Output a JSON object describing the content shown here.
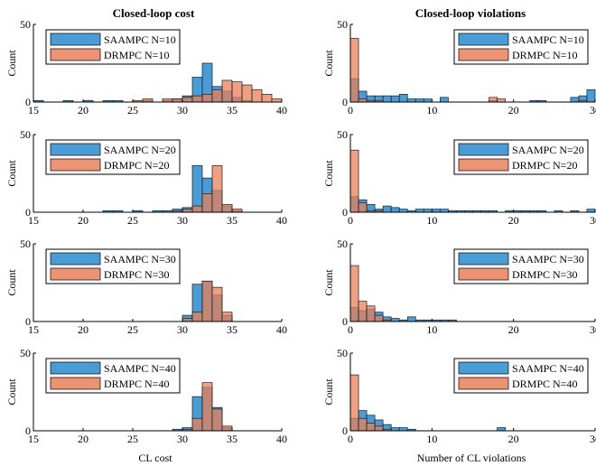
{
  "colors": {
    "saampc": "#4a9cd6",
    "drmpc": "#e8805a",
    "overlap": "#9a6a5a",
    "edge": "#1a1a1a"
  },
  "chart_data": {
    "type": "histogram-grid",
    "column_titles": [
      "Closed-loop cost",
      "Closed-loop violations"
    ],
    "column_xlabels": [
      "",
      ""
    ],
    "bottom_xlabels": [
      "CL cost",
      "Number of CL violations"
    ],
    "ylabel": "Count",
    "ylim": [
      0,
      50
    ],
    "yticks": [
      0,
      50
    ],
    "columns": [
      {
        "xlim": [
          15,
          40
        ],
        "xticks": [
          15,
          20,
          25,
          30,
          35,
          40
        ],
        "binwidth": 1
      },
      {
        "xlim": [
          0,
          30
        ],
        "xticks": [
          0,
          10,
          20,
          30
        ],
        "binwidth": 1
      }
    ],
    "rows": [
      {
        "N": 10,
        "cost": {
          "legend": [
            "SAAMPC N=10",
            "DRMPC N=10"
          ],
          "saampc": [
            [
              15,
              1
            ],
            [
              18,
              1
            ],
            [
              20,
              1
            ],
            [
              22,
              1
            ],
            [
              23,
              1
            ],
            [
              26,
              1
            ],
            [
              28,
              1
            ],
            [
              29,
              2
            ],
            [
              30,
              4
            ],
            [
              31,
              16
            ],
            [
              32,
              25
            ],
            [
              33,
              10
            ],
            [
              34,
              7
            ],
            [
              35,
              3
            ],
            [
              36,
              1
            ]
          ],
          "drmpc": [
            [
              25,
              1
            ],
            [
              26,
              2
            ],
            [
              28,
              2
            ],
            [
              29,
              2
            ],
            [
              30,
              3
            ],
            [
              31,
              4
            ],
            [
              32,
              5
            ],
            [
              33,
              8
            ],
            [
              34,
              14
            ],
            [
              35,
              13
            ],
            [
              36,
              11
            ],
            [
              37,
              8
            ],
            [
              38,
              5
            ],
            [
              39,
              2
            ]
          ]
        },
        "viol": {
          "legend": [
            "SAAMPC N=10",
            "DRMPC N=10"
          ],
          "saampc": [
            [
              0,
              15
            ],
            [
              1,
              7
            ],
            [
              2,
              4
            ],
            [
              3,
              4
            ],
            [
              4,
              4
            ],
            [
              5,
              4
            ],
            [
              6,
              5
            ],
            [
              7,
              2
            ],
            [
              8,
              2
            ],
            [
              9,
              2
            ],
            [
              11,
              3
            ],
            [
              17,
              1
            ],
            [
              22,
              1
            ],
            [
              23,
              1
            ],
            [
              27,
              3
            ],
            [
              28,
              4
            ],
            [
              29,
              8
            ]
          ],
          "drmpc": [
            [
              0,
              41
            ],
            [
              1,
              2
            ],
            [
              2,
              1
            ],
            [
              3,
              1
            ],
            [
              17,
              3
            ],
            [
              18,
              2
            ],
            [
              28,
              1
            ]
          ]
        }
      },
      {
        "N": 20,
        "cost": {
          "legend": [
            "SAAMPC N=20",
            "DRMPC N=20"
          ],
          "saampc": [
            [
              22,
              1
            ],
            [
              23,
              1
            ],
            [
              25,
              1
            ],
            [
              27,
              1
            ],
            [
              28,
              1
            ],
            [
              29,
              2
            ],
            [
              30,
              3
            ],
            [
              31,
              30
            ],
            [
              32,
              22
            ],
            [
              33,
              14
            ],
            [
              34,
              4
            ],
            [
              35,
              1
            ]
          ],
          "drmpc": [
            [
              29,
              1
            ],
            [
              30,
              2
            ],
            [
              31,
              4
            ],
            [
              32,
              12
            ],
            [
              33,
              30
            ],
            [
              34,
              5
            ],
            [
              35,
              2
            ]
          ]
        },
        "viol": {
          "legend": [
            "SAAMPC N=20",
            "DRMPC N=20"
          ],
          "saampc": [
            [
              0,
              10
            ],
            [
              1,
              8
            ],
            [
              2,
              5
            ],
            [
              3,
              2
            ],
            [
              4,
              4
            ],
            [
              5,
              3
            ],
            [
              6,
              2
            ],
            [
              7,
              1
            ],
            [
              8,
              2
            ],
            [
              9,
              2
            ],
            [
              10,
              2
            ],
            [
              11,
              2
            ],
            [
              12,
              1
            ],
            [
              13,
              1
            ],
            [
              14,
              1
            ],
            [
              15,
              1
            ],
            [
              16,
              1
            ],
            [
              17,
              1
            ],
            [
              19,
              1
            ],
            [
              20,
              1
            ],
            [
              21,
              1
            ],
            [
              22,
              1
            ],
            [
              23,
              1
            ],
            [
              25,
              1
            ],
            [
              27,
              1
            ],
            [
              29,
              2
            ]
          ],
          "drmpc": [
            [
              0,
              40
            ],
            [
              1,
              6
            ],
            [
              2,
              1
            ],
            [
              3,
              1
            ]
          ]
        }
      },
      {
        "N": 30,
        "cost": {
          "legend": [
            "SAAMPC N=30",
            "DRMPC N=30"
          ],
          "saampc": [
            [
              30,
              4
            ],
            [
              31,
              24
            ],
            [
              32,
              26
            ],
            [
              33,
              17
            ],
            [
              34,
              4
            ]
          ],
          "drmpc": [
            [
              30,
              2
            ],
            [
              31,
              6
            ],
            [
              32,
              26
            ],
            [
              33,
              22
            ],
            [
              34,
              6
            ]
          ]
        },
        "viol": {
          "legend": [
            "SAAMPC N=30",
            "DRMPC N=30"
          ],
          "saampc": [
            [
              0,
              9
            ],
            [
              1,
              7
            ],
            [
              2,
              8
            ],
            [
              3,
              6
            ],
            [
              4,
              3
            ],
            [
              5,
              2
            ],
            [
              6,
              1
            ],
            [
              7,
              3
            ],
            [
              8,
              1
            ],
            [
              9,
              1
            ],
            [
              10,
              1
            ],
            [
              11,
              1
            ],
            [
              12,
              1
            ]
          ],
          "drmpc": [
            [
              0,
              36
            ],
            [
              1,
              13
            ],
            [
              2,
              10
            ],
            [
              3,
              4
            ],
            [
              4,
              1
            ]
          ]
        }
      },
      {
        "N": 40,
        "cost": {
          "legend": [
            "SAAMPC N=40",
            "DRMPC N=40"
          ],
          "saampc": [
            [
              29,
              1
            ],
            [
              30,
              2
            ],
            [
              31,
              22
            ],
            [
              32,
              28
            ],
            [
              33,
              15
            ],
            [
              34,
              2
            ]
          ],
          "drmpc": [
            [
              30,
              1
            ],
            [
              31,
              8
            ],
            [
              32,
              31
            ],
            [
              33,
              14
            ],
            [
              34,
              3
            ]
          ]
        },
        "viol": {
          "legend": [
            "SAAMPC N=40",
            "DRMPC N=40"
          ],
          "saampc": [
            [
              0,
              8
            ],
            [
              1,
              13
            ],
            [
              2,
              10
            ],
            [
              3,
              7
            ],
            [
              4,
              4
            ],
            [
              5,
              2
            ],
            [
              6,
              2
            ],
            [
              7,
              1
            ],
            [
              18,
              2
            ]
          ],
          "drmpc": [
            [
              0,
              36
            ],
            [
              1,
              8
            ],
            [
              2,
              5
            ],
            [
              3,
              3
            ],
            [
              4,
              1
            ]
          ]
        }
      }
    ]
  }
}
